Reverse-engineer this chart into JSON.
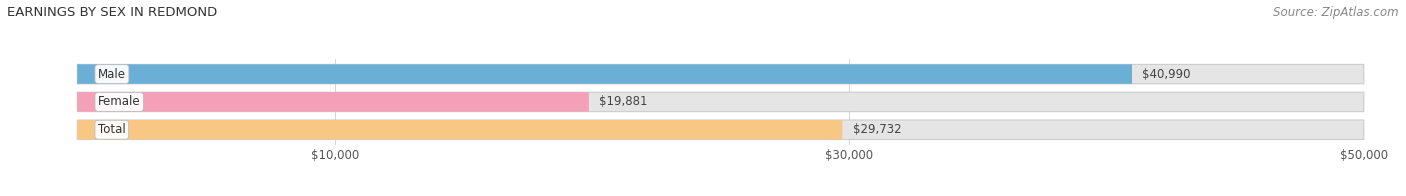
{
  "title": "EARNINGS BY SEX IN REDMOND",
  "source": "Source: ZipAtlas.com",
  "categories": [
    "Male",
    "Female",
    "Total"
  ],
  "values": [
    40990,
    19881,
    29732
  ],
  "bar_colors": [
    "#6baed6",
    "#f4a0b8",
    "#f9c784"
  ],
  "bar_bg_color": "#e5e5e5",
  "xlim": [
    0,
    50000
  ],
  "xticks": [
    10000,
    30000,
    50000
  ],
  "xtick_labels": [
    "$10,000",
    "$30,000",
    "$50,000"
  ],
  "value_labels": [
    "$40,990",
    "$19,881",
    "$29,732"
  ],
  "title_fontsize": 9.5,
  "bar_label_fontsize": 8.5,
  "value_fontsize": 8.5,
  "source_fontsize": 8.5,
  "figsize": [
    14.06,
    1.96
  ],
  "dpi": 100
}
